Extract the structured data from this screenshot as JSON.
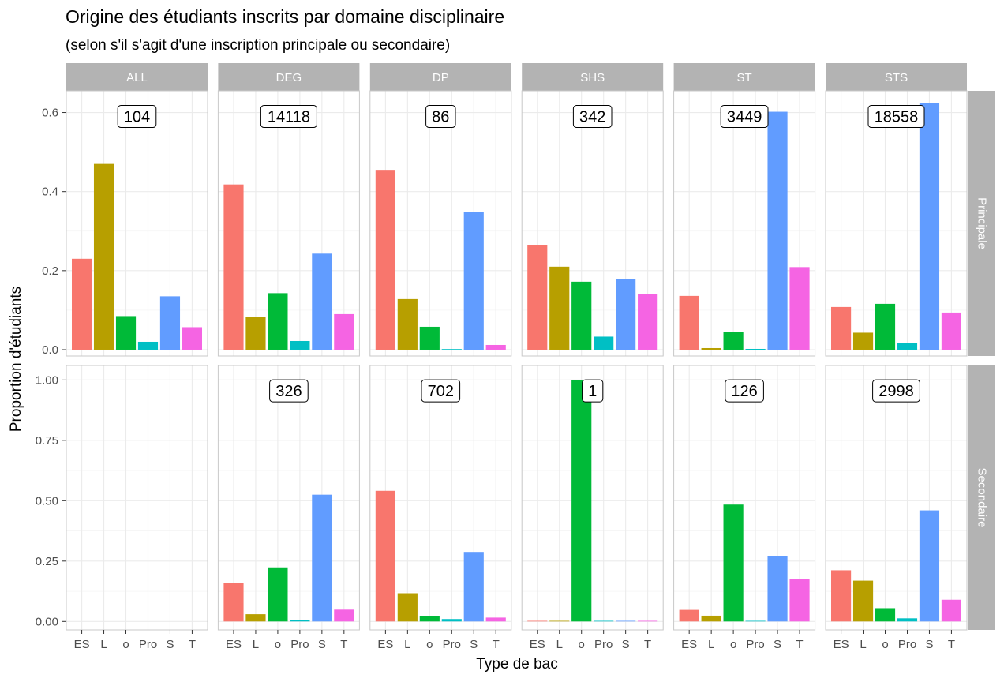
{
  "chart_data": {
    "type": "bar",
    "title": "Origine des étudiants inscrits par domaine disciplinaire",
    "subtitle": "(selon s'il s'agit d'une inscription principale ou secondaire)",
    "xlabel": "Type de bac",
    "ylabel": "Proportion d'étudiants",
    "categories": [
      "ES",
      "L",
      "o",
      "Pro",
      "S",
      "T"
    ],
    "colors": [
      "#F8766D",
      "#B79F00",
      "#00BA38",
      "#00BFC4",
      "#619CFF",
      "#F564E3"
    ],
    "columns": [
      "ALL",
      "DEG",
      "DP",
      "SHS",
      "ST",
      "STS"
    ],
    "rows": [
      {
        "name": "Principale",
        "ylim": [
          -0.016,
          0.655
        ],
        "yticks": [
          0.0,
          0.2,
          0.4,
          0.6
        ],
        "ytick_labels": [
          "0.0",
          "0.2",
          "0.4",
          "0.6"
        ],
        "panels": [
          {
            "column": "ALL",
            "count": "104",
            "values": [
              0.23,
              0.47,
              0.085,
              0.02,
              0.135,
              0.057
            ]
          },
          {
            "column": "DEG",
            "count": "14118",
            "values": [
              0.418,
              0.083,
              0.143,
              0.022,
              0.243,
              0.09
            ]
          },
          {
            "column": "DP",
            "count": "86",
            "values": [
              0.453,
              0.128,
              0.058,
              0.0,
              0.349,
              0.012
            ]
          },
          {
            "column": "SHS",
            "count": "342",
            "values": [
              0.265,
              0.21,
              0.172,
              0.033,
              0.178,
              0.141
            ]
          },
          {
            "column": "ST",
            "count": "3449",
            "values": [
              0.136,
              0.004,
              0.045,
              0.002,
              0.602,
              0.209
            ]
          },
          {
            "column": "STS",
            "count": "18558",
            "values": [
              0.108,
              0.043,
              0.116,
              0.016,
              0.625,
              0.094
            ]
          }
        ]
      },
      {
        "name": "Secondaire",
        "ylim": [
          -0.035,
          1.06
        ],
        "yticks": [
          0.0,
          0.25,
          0.5,
          0.75,
          1.0
        ],
        "ytick_labels": [
          "0.00",
          "0.25",
          "0.50",
          "0.75",
          "1.00"
        ],
        "panels": [
          {
            "column": "ALL",
            "count": "",
            "values": [
              null,
              null,
              null,
              null,
              null,
              null
            ]
          },
          {
            "column": "DEG",
            "count": "326",
            "values": [
              0.159,
              0.03,
              0.224,
              0.006,
              0.525,
              0.049
            ]
          },
          {
            "column": "DP",
            "count": "702",
            "values": [
              0.541,
              0.117,
              0.023,
              0.01,
              0.288,
              0.016
            ]
          },
          {
            "column": "SHS",
            "count": "1",
            "values": [
              0.0,
              0.0,
              1.0,
              0.0,
              0.0,
              0.0
            ]
          },
          {
            "column": "ST",
            "count": "126",
            "values": [
              0.048,
              0.024,
              0.484,
              0.0,
              0.27,
              0.175
            ]
          },
          {
            "column": "STS",
            "count": "2998",
            "values": [
              0.212,
              0.169,
              0.055,
              0.013,
              0.46,
              0.09
            ]
          }
        ]
      }
    ],
    "grid": true,
    "legend": "none"
  }
}
